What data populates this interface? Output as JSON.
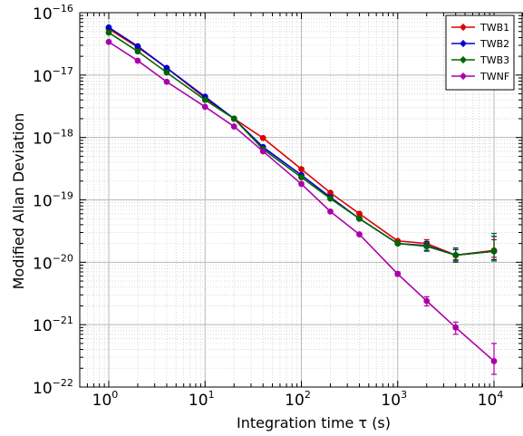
{
  "chart_data": {
    "type": "line",
    "xlabel": "Integration time τ (s)",
    "ylabel": "Modified Allan Deviation",
    "x_scale": "log",
    "y_scale": "log",
    "xlim": [
      0.5,
      20000
    ],
    "ylim": [
      1e-22,
      1e-16
    ],
    "x_tick_labels": [
      {
        "base": "10",
        "exp": "0"
      },
      {
        "base": "10",
        "exp": "1"
      },
      {
        "base": "10",
        "exp": "2"
      },
      {
        "base": "10",
        "exp": "3"
      },
      {
        "base": "10",
        "exp": "4"
      }
    ],
    "y_tick_labels": [
      {
        "base": "10",
        "exp": "-16"
      },
      {
        "base": "10",
        "exp": "-17"
      },
      {
        "base": "10",
        "exp": "-18"
      },
      {
        "base": "10",
        "exp": "-19"
      },
      {
        "base": "10",
        "exp": "-20"
      },
      {
        "base": "10",
        "exp": "-21"
      },
      {
        "base": "10",
        "exp": "-22"
      }
    ],
    "grid": true,
    "legend_position": "top-right",
    "series": [
      {
        "name": "TWB1",
        "color": "#dd0000",
        "x": [
          1,
          2,
          4,
          10,
          20,
          40,
          100,
          200,
          400,
          1000,
          2000,
          4000,
          10000
        ],
        "y": [
          5.5e-17,
          2.8e-17,
          1.3e-17,
          4.3e-18,
          2e-18,
          9.8e-19,
          3.1e-19,
          1.3e-19,
          6e-20,
          2.2e-20,
          2e-20,
          1.3e-20,
          1.55e-20
        ],
        "err_low": [
          null,
          null,
          null,
          null,
          null,
          null,
          null,
          null,
          null,
          null,
          1.7e-20,
          1.1e-20,
          1.2e-20
        ],
        "err_high": [
          null,
          null,
          null,
          null,
          null,
          null,
          null,
          null,
          null,
          null,
          2.3e-20,
          1.6e-20,
          2.3e-20
        ]
      },
      {
        "name": "TWB2",
        "color": "#0000cc",
        "x": [
          1,
          2,
          4,
          10,
          20,
          40,
          100,
          200,
          400,
          1000,
          2000,
          4000,
          10000
        ],
        "y": [
          5.8e-17,
          2.9e-17,
          1.3e-17,
          4.5e-18,
          2e-18,
          7e-19,
          2.5e-19,
          1.1e-19,
          5e-20,
          2e-20,
          1.85e-20,
          1.3e-20,
          1.5e-20
        ],
        "err_low": [
          null,
          null,
          null,
          null,
          null,
          null,
          null,
          null,
          null,
          null,
          1.55e-20,
          1.05e-20,
          1.1e-20
        ],
        "err_high": [
          null,
          null,
          null,
          null,
          null,
          null,
          null,
          null,
          null,
          null,
          2.15e-20,
          1.6e-20,
          2.6e-20
        ]
      },
      {
        "name": "TWB3",
        "color": "#006600",
        "x": [
          1,
          2,
          4,
          10,
          20,
          40,
          100,
          200,
          400,
          1000,
          2000,
          4000,
          10000
        ],
        "y": [
          4.8e-17,
          2.4e-17,
          1.1e-17,
          4e-18,
          2e-18,
          6.5e-19,
          2.3e-19,
          1.05e-19,
          5e-20,
          2e-20,
          1.8e-20,
          1.3e-20,
          1.5e-20
        ],
        "err_low": [
          null,
          null,
          null,
          null,
          null,
          null,
          null,
          null,
          null,
          null,
          1.5e-20,
          1e-20,
          1.05e-20
        ],
        "err_high": [
          null,
          null,
          null,
          null,
          null,
          null,
          null,
          null,
          null,
          null,
          2.1e-20,
          1.7e-20,
          2.9e-20
        ]
      },
      {
        "name": "TWNF",
        "color": "#aa00aa",
        "x": [
          1,
          2,
          4,
          10,
          20,
          40,
          100,
          200,
          400,
          1000,
          2000,
          4000,
          10000
        ],
        "y": [
          3.4e-17,
          1.7e-17,
          7.8e-18,
          3.1e-18,
          1.5e-18,
          6e-19,
          1.8e-19,
          6.5e-20,
          2.8e-20,
          6.5e-21,
          2.4e-21,
          9e-22,
          2.6e-22
        ],
        "err_low": [
          null,
          null,
          null,
          null,
          null,
          null,
          null,
          null,
          null,
          6e-21,
          2e-21,
          7e-22,
          1.6e-22
        ],
        "err_high": [
          null,
          null,
          null,
          null,
          null,
          null,
          null,
          null,
          null,
          7e-21,
          2.8e-21,
          1.1e-21,
          5e-22
        ]
      }
    ]
  }
}
